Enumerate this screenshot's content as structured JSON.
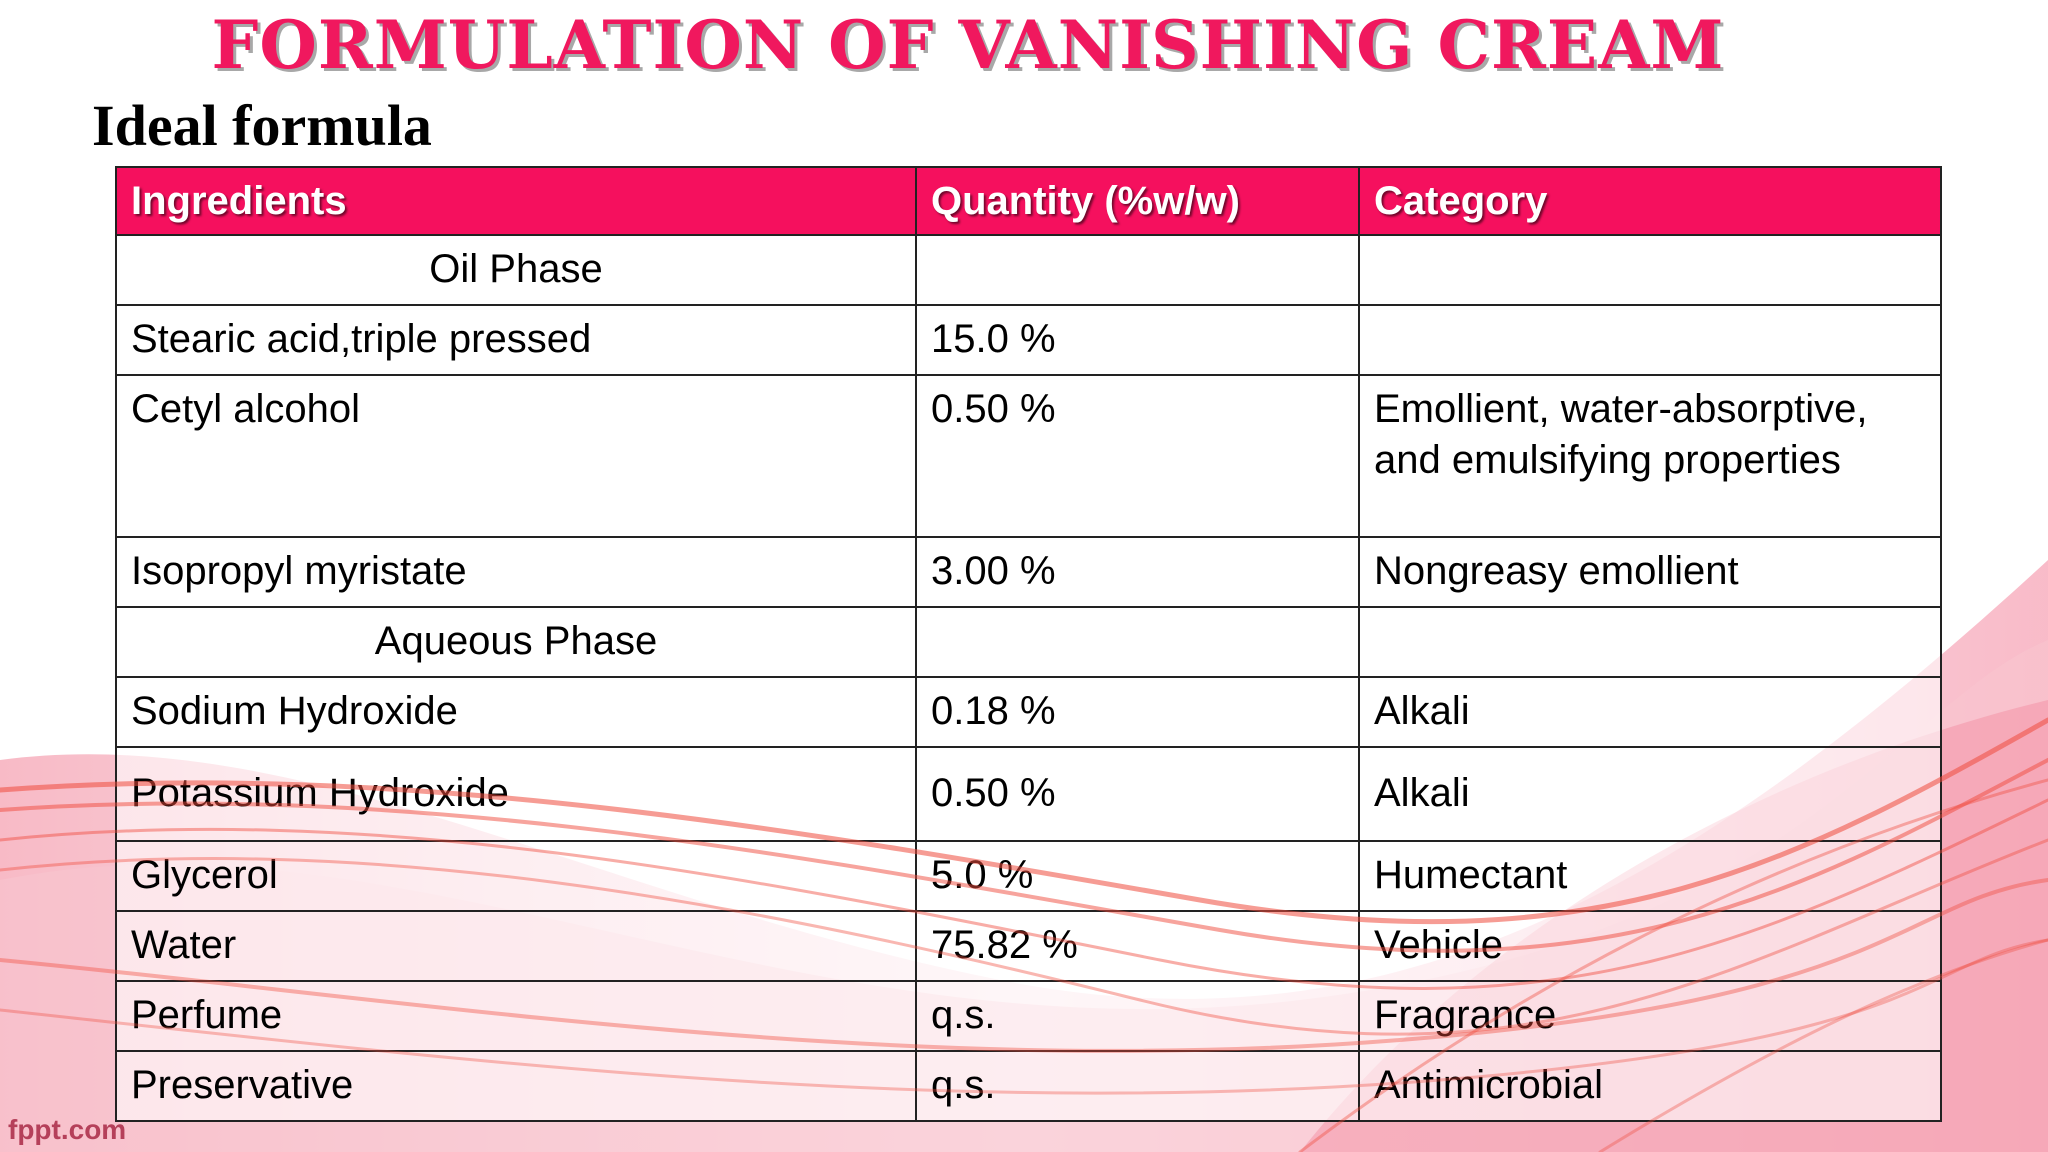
{
  "title": "FORMULATION OF VANISHING CREAM",
  "subtitle": "Ideal formula",
  "table": {
    "headers": [
      "Ingredients",
      "Quantity (%w/w)",
      "Category"
    ],
    "rows": [
      {
        "ingredient": "Oil Phase",
        "quantity": "",
        "category": "",
        "phase_header": true
      },
      {
        "ingredient": "Stearic acid,triple pressed",
        "quantity": "15.0 %",
        "category": ""
      },
      {
        "ingredient": "Cetyl alcohol",
        "quantity": "0.50 %",
        "category": "Emollient, water-absorptive, and emulsifying properties"
      },
      {
        "ingredient": "Isopropyl myristate",
        "quantity": "3.00 %",
        "category": "Nongreasy emollient"
      },
      {
        "ingredient": "Aqueous Phase",
        "quantity": "",
        "category": "",
        "phase_header": true
      },
      {
        "ingredient": "Sodium Hydroxide",
        "quantity": "0.18 %",
        "category": "Alkali"
      },
      {
        "ingredient": "Potassium Hydroxide",
        "quantity": "0.50 %",
        "category": "Alkali"
      },
      {
        "ingredient": "Glycerol",
        "quantity": "5.0 %",
        "category": "Humectant"
      },
      {
        "ingredient": "Water",
        "quantity": "75.82 %",
        "category": "Vehicle"
      },
      {
        "ingredient": "Perfume",
        "quantity": "q.s.",
        "category": "Fragrance"
      },
      {
        "ingredient": "Preservative",
        "quantity": "q.s.",
        "category": "Antimicrobial"
      }
    ]
  },
  "footer": {
    "logo": "fppt.com"
  },
  "colors": {
    "title": "#f0185e",
    "header_bg": "#f5105e",
    "wave": "#ef4a3c"
  }
}
